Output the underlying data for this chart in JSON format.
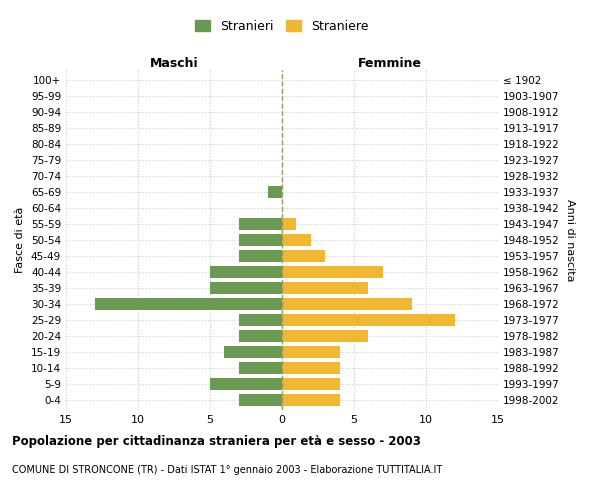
{
  "age_groups": [
    "0-4",
    "5-9",
    "10-14",
    "15-19",
    "20-24",
    "25-29",
    "30-34",
    "35-39",
    "40-44",
    "45-49",
    "50-54",
    "55-59",
    "60-64",
    "65-69",
    "70-74",
    "75-79",
    "80-84",
    "85-89",
    "90-94",
    "95-99",
    "100+"
  ],
  "birth_years": [
    "1998-2002",
    "1993-1997",
    "1988-1992",
    "1983-1987",
    "1978-1982",
    "1973-1977",
    "1968-1972",
    "1963-1967",
    "1958-1962",
    "1953-1957",
    "1948-1952",
    "1943-1947",
    "1938-1942",
    "1933-1937",
    "1928-1932",
    "1923-1927",
    "1918-1922",
    "1913-1917",
    "1908-1912",
    "1903-1907",
    "≤ 1902"
  ],
  "males": [
    3,
    5,
    3,
    4,
    3,
    3,
    13,
    5,
    5,
    3,
    3,
    3,
    0,
    1,
    0,
    0,
    0,
    0,
    0,
    0,
    0
  ],
  "females": [
    4,
    4,
    4,
    4,
    6,
    12,
    9,
    6,
    7,
    3,
    2,
    1,
    0,
    0,
    0,
    0,
    0,
    0,
    0,
    0,
    0
  ],
  "male_color": "#6a9a52",
  "female_color": "#f0b830",
  "title": "Popolazione per cittadinanza straniera per età e sesso - 2003",
  "subtitle": "COMUNE DI STRONCONE (TR) - Dati ISTAT 1° gennaio 2003 - Elaborazione TUTTITALIA.IT",
  "xlabel_left": "Maschi",
  "xlabel_right": "Femmine",
  "ylabel_left": "Fasce di età",
  "ylabel_right": "Anni di nascita",
  "legend_male": "Stranieri",
  "legend_female": "Straniere",
  "xlim": 15,
  "background_color": "#ffffff",
  "grid_color": "#cccccc"
}
